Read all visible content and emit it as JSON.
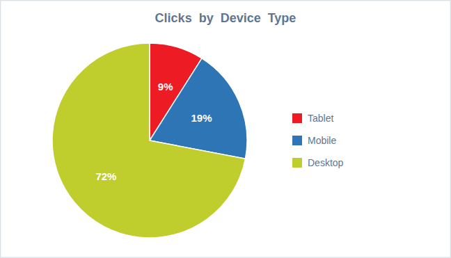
{
  "chart_data": {
    "type": "pie",
    "title": "Clicks  by  Device  Type",
    "categories": [
      "Tablet",
      "Mobile",
      "Desktop"
    ],
    "values": [
      9,
      19,
      72
    ],
    "value_labels": [
      "9%",
      "19%",
      "72%"
    ],
    "colors": [
      "#ED1C24",
      "#2E75B6",
      "#BFCE2D"
    ],
    "legend": "right",
    "data_labels": true
  }
}
